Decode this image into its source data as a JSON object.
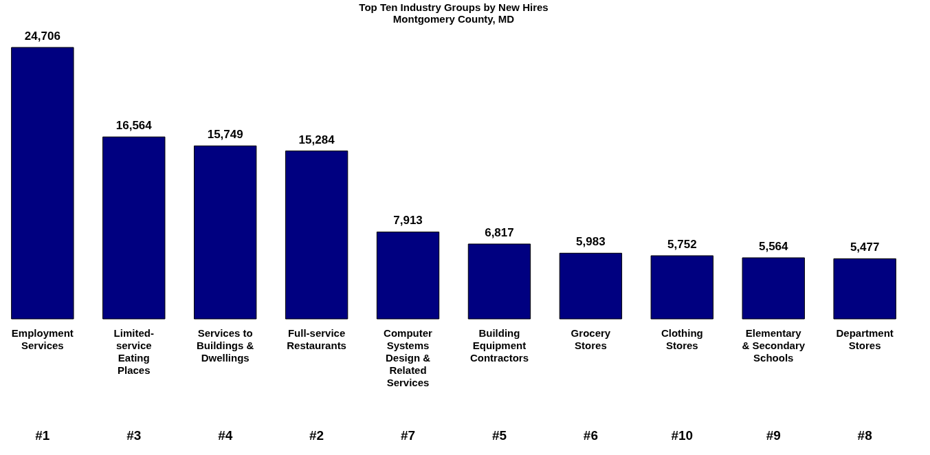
{
  "chart_data": {
    "type": "bar",
    "title": "Top Ten Industry Groups by New Hires",
    "subtitle": "Montgomery County, MD",
    "categories": [
      "Employment Services",
      "Limited-service Eating Places",
      "Services to Buildings & Dwellings",
      "Full-service Restaurants",
      "Computer Systems Design & Related Services",
      "Building Equipment Contractors",
      "Grocery Stores",
      "Clothing Stores",
      "Elementary & Secondary Schools",
      "Department Stores"
    ],
    "values": [
      24706,
      16564,
      15749,
      15284,
      7913,
      6817,
      5983,
      5752,
      5564,
      5477
    ],
    "color": "#000080",
    "value_labels": [
      "24,706",
      "16,564",
      "15,749",
      "15,284",
      "7,913",
      "6,817",
      "5,983",
      "5,752",
      "5,564",
      "5,477"
    ],
    "annotations": [
      "#1",
      "#3",
      "#4",
      "#2",
      "#7",
      "#5",
      "#6",
      "#10",
      "#9",
      "#8"
    ]
  }
}
